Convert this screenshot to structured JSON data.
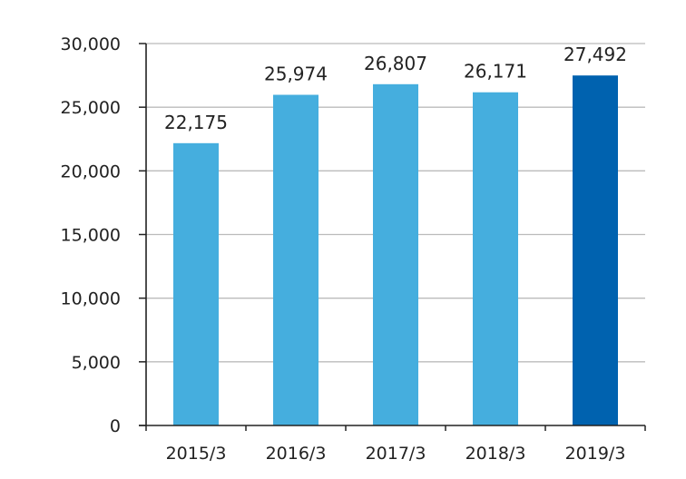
{
  "chart_data": {
    "type": "bar",
    "title": "",
    "xlabel": "",
    "ylabel": "",
    "categories": [
      "2015/3",
      "2016/3",
      "2017/3",
      "2018/3",
      "2019/3"
    ],
    "values": [
      22175,
      25974,
      26807,
      26171,
      27492
    ],
    "value_labels": [
      "22,175",
      "25,974",
      "26,807",
      "26,171",
      "27,492"
    ],
    "ylim": [
      0,
      30000
    ],
    "yticks": [
      0,
      5000,
      10000,
      15000,
      20000,
      25000,
      30000
    ],
    "ytick_labels": [
      "0",
      "5,000",
      "10,000",
      "15,000",
      "20,000",
      "25,000",
      "30,000"
    ],
    "grid": true,
    "colors": {
      "bar": "#45AEDE",
      "highlight_bar": "#0062AF",
      "grid": "#BBBBBB",
      "axis": "#222222"
    },
    "highlight_index": 4
  }
}
